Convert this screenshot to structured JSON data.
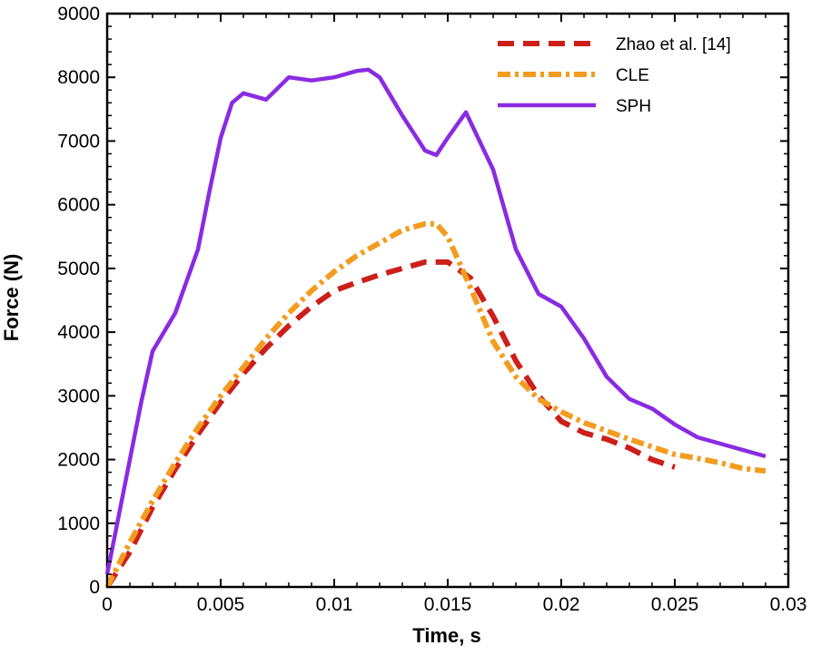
{
  "chart_data": {
    "type": "line",
    "xlabel": "Time, s",
    "ylabel": "Force (N)",
    "xlim": [
      0,
      0.03
    ],
    "ylim": [
      0,
      9000
    ],
    "xticks": [
      "0",
      "0.005",
      "0.01",
      "0.015",
      "0.02",
      "0.025",
      "0.03"
    ],
    "xtick_values": [
      0,
      0.005,
      0.01,
      0.015,
      0.02,
      0.025,
      0.03
    ],
    "yticks": [
      "0",
      "1000",
      "2000",
      "3000",
      "4000",
      "5000",
      "6000",
      "7000",
      "8000",
      "9000"
    ],
    "ytick_values": [
      0,
      1000,
      2000,
      3000,
      4000,
      5000,
      6000,
      7000,
      8000,
      9000
    ],
    "grid": false,
    "legend_position": "top-right",
    "series": [
      {
        "name": "Zhao et al. [14]",
        "color": "#cc1f1a",
        "style": "dashed",
        "x": [
          0,
          0.001,
          0.002,
          0.003,
          0.004,
          0.005,
          0.006,
          0.007,
          0.008,
          0.009,
          0.01,
          0.011,
          0.012,
          0.013,
          0.014,
          0.015,
          0.016,
          0.017,
          0.018,
          0.019,
          0.02,
          0.021,
          0.022,
          0.023,
          0.024,
          0.025
        ],
        "y": [
          0,
          550,
          1250,
          1850,
          2400,
          2900,
          3350,
          3750,
          4100,
          4400,
          4650,
          4780,
          4900,
          5000,
          5100,
          5100,
          4850,
          4250,
          3550,
          3000,
          2600,
          2420,
          2320,
          2180,
          2000,
          1880
        ]
      },
      {
        "name": "CLE",
        "color": "#f39c1f",
        "style": "dash-dot",
        "x": [
          0,
          0.001,
          0.002,
          0.003,
          0.004,
          0.005,
          0.006,
          0.007,
          0.008,
          0.009,
          0.01,
          0.011,
          0.012,
          0.013,
          0.014,
          0.0145,
          0.015,
          0.016,
          0.017,
          0.018,
          0.019,
          0.02,
          0.021,
          0.022,
          0.023,
          0.024,
          0.025,
          0.026,
          0.027,
          0.028,
          0.029
        ],
        "y": [
          0,
          700,
          1350,
          1950,
          2500,
          3000,
          3450,
          3900,
          4300,
          4650,
          4950,
          5200,
          5400,
          5600,
          5700,
          5700,
          5500,
          4700,
          3850,
          3300,
          2950,
          2750,
          2580,
          2450,
          2320,
          2200,
          2080,
          2020,
          1950,
          1860,
          1820
        ]
      },
      {
        "name": "SPH",
        "color": "#8a2be2",
        "style": "solid",
        "x": [
          0,
          0.0005,
          0.001,
          0.0015,
          0.002,
          0.003,
          0.004,
          0.0045,
          0.005,
          0.0055,
          0.006,
          0.007,
          0.008,
          0.009,
          0.01,
          0.011,
          0.0115,
          0.012,
          0.013,
          0.014,
          0.0145,
          0.015,
          0.0158,
          0.017,
          0.018,
          0.019,
          0.02,
          0.021,
          0.022,
          0.023,
          0.024,
          0.025,
          0.026,
          0.027,
          0.028,
          0.029
        ],
        "y": [
          200,
          1100,
          2000,
          2900,
          3700,
          4300,
          5300,
          6200,
          7050,
          7600,
          7750,
          7650,
          8000,
          7950,
          8000,
          8100,
          8120,
          8000,
          7400,
          6850,
          6780,
          7050,
          7450,
          6550,
          5300,
          4600,
          4400,
          3900,
          3300,
          2950,
          2800,
          2550,
          2350,
          2250,
          2150,
          2050
        ]
      }
    ]
  }
}
